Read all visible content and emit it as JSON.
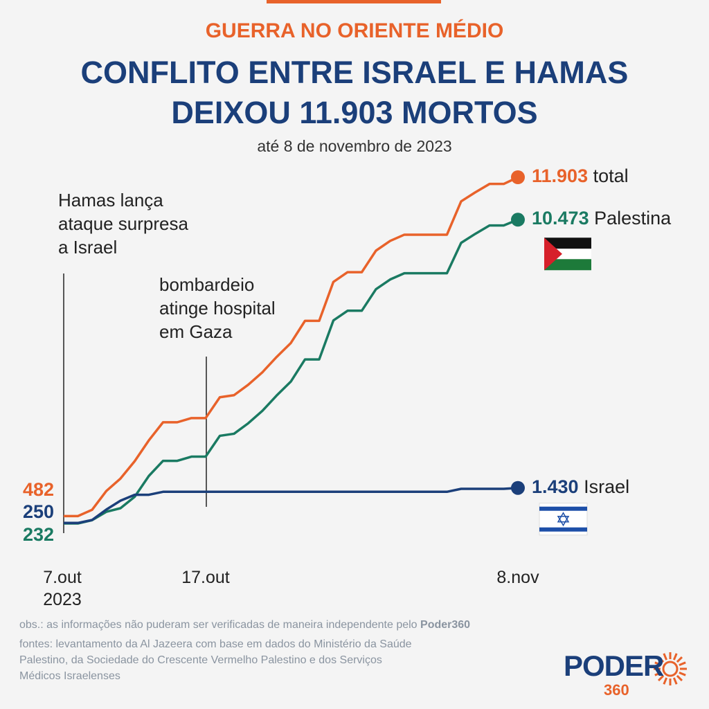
{
  "header": "GUERRA NO ORIENTE MÉDIO",
  "chart_data": {
    "type": "line",
    "title": "CONFLITO ENTRE ISRAEL E HAMAS\nDEIXOU 11.903 MORTOS",
    "subtitle": "até 8 de novembro de 2023",
    "categories": [
      "7.out\n2023",
      null,
      null,
      null,
      null,
      null,
      null,
      null,
      null,
      null,
      "17.out",
      null,
      null,
      null,
      null,
      null,
      null,
      null,
      null,
      null,
      null,
      null,
      null,
      null,
      null,
      null,
      null,
      null,
      null,
      null,
      null,
      null,
      "8.nov"
    ],
    "series": [
      {
        "name": "total",
        "color": "#e8622a",
        "values": [
          482,
          482,
          693,
          1325,
          1747,
          2332,
          3035,
          3644,
          3644,
          3785,
          3785,
          4487,
          4557,
          4909,
          5330,
          5845,
          6314,
          7063,
          7063,
          8375,
          8703,
          8703,
          9429,
          9757,
          9967,
          9967,
          9967,
          9967,
          11091,
          11396,
          11677,
          11677,
          11903
        ],
        "value_labels": [
          "482",
          null,
          null,
          null,
          null,
          null,
          null,
          null,
          null,
          null,
          null,
          null,
          null,
          null,
          null,
          null,
          null,
          null,
          null,
          null,
          null,
          null,
          null,
          null,
          null,
          null,
          null,
          null,
          null,
          null,
          null,
          null,
          "11.903"
        ]
      },
      {
        "name": "Palestina",
        "color": "#1a7a62",
        "values": [
          232,
          232,
          343,
          625,
          747,
          1132,
          1835,
          2344,
          2344,
          2485,
          2485,
          3187,
          3257,
          3609,
          4030,
          4545,
          5014,
          5763,
          5763,
          7075,
          7403,
          7403,
          8129,
          8457,
          8667,
          8667,
          8667,
          8667,
          9691,
          9996,
          10277,
          10277,
          10473
        ],
        "value_labels": [
          "232",
          null,
          null,
          null,
          null,
          null,
          null,
          null,
          null,
          null,
          null,
          null,
          null,
          null,
          null,
          null,
          null,
          null,
          null,
          null,
          null,
          null,
          null,
          null,
          null,
          null,
          null,
          null,
          null,
          null,
          null,
          null,
          "10.473"
        ]
      },
      {
        "name": "Israel",
        "color": "#1b3f7a",
        "values": [
          250,
          250,
          350,
          700,
          1000,
          1200,
          1200,
          1300,
          1300,
          1300,
          1300,
          1300,
          1300,
          1300,
          1300,
          1300,
          1300,
          1300,
          1300,
          1300,
          1300,
          1300,
          1300,
          1300,
          1300,
          1300,
          1300,
          1300,
          1400,
          1400,
          1400,
          1400,
          1430
        ],
        "value_labels": [
          "250",
          null,
          null,
          null,
          null,
          null,
          null,
          null,
          null,
          null,
          null,
          null,
          null,
          null,
          null,
          null,
          null,
          null,
          null,
          null,
          null,
          null,
          null,
          null,
          null,
          null,
          null,
          null,
          null,
          null,
          null,
          null,
          "1.430"
        ]
      }
    ],
    "annotations": [
      "Hamas lança\nataque surpresa\na Israel",
      "bombardeio\natinge hospital\nem Gaza"
    ]
  },
  "footer": {
    "obs": "obs.: as informações não puderam ser verificadas de maneira independente pelo ",
    "obs_brand": "Poder360",
    "sources": "fontes: levantamento da Al Jazeera com base em dados do Ministério da Saúde\nPalestino, da Sociedade do Crescente Vermelho Palestino e dos Serviços\nMédicos Israelenses",
    "logo": "PODER",
    "logo_number": "360"
  }
}
